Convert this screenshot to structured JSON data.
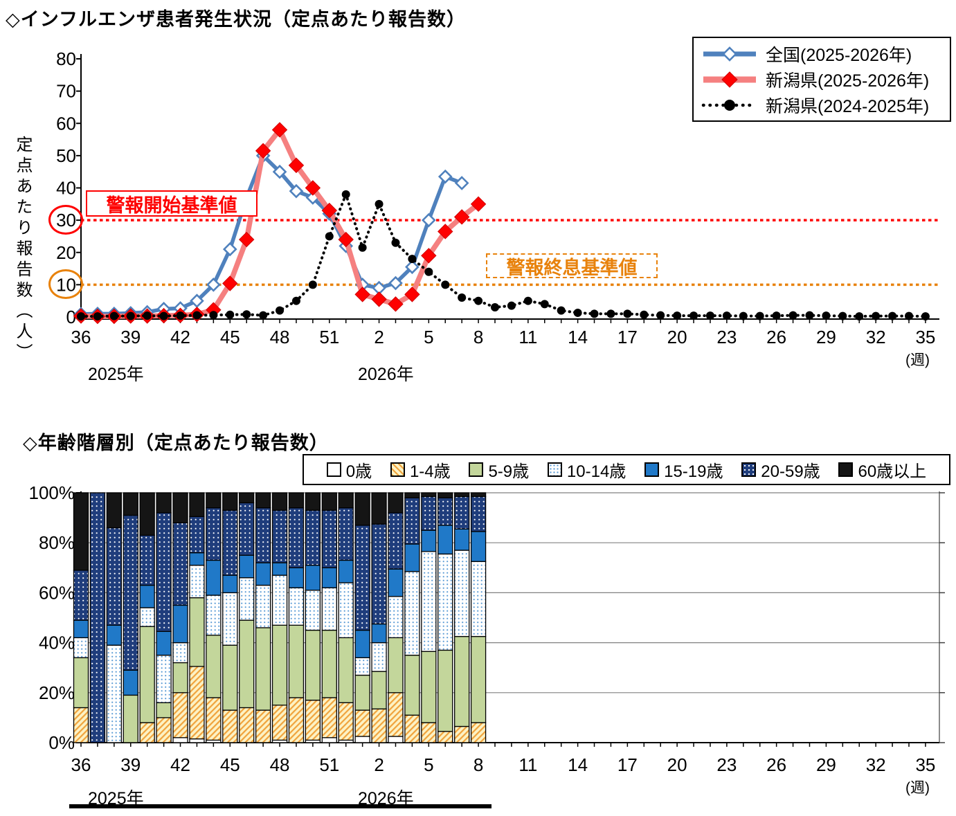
{
  "top_chart": {
    "title": "◇インフルエンザ患者発生状況（定点あたり報告数）",
    "y_axis_title": "定点あたり報告数（人）",
    "unit_label": "(週)",
    "year_label_2025": "2025年",
    "year_label_2026": "2026年",
    "alert_start_label": "警報開始基準値",
    "alert_end_label": "警報終息基準値",
    "legend": [
      {
        "label": "全国(2025-2026年)",
        "marker": "blue-diamond-line"
      },
      {
        "label": "新潟県(2025-2026年)",
        "marker": "red-diamond-line"
      },
      {
        "label": "新潟県(2024-2025年)",
        "marker": "black-dotted-line"
      }
    ],
    "colors": {
      "national_line": "#4f81bd",
      "niigata_current_line": "#f58080",
      "niigata_current_marker": "#fe0000",
      "niigata_previous": "#000000",
      "alert_start": "#fe0000",
      "alert_end": "#e8820c"
    }
  },
  "bottom_chart": {
    "title": "◇年齢階層別（定点あたり報告数）",
    "unit_label": "(週)",
    "year_label_2025": "2025年",
    "year_label_2026": "2026年",
    "legend": [
      "0歳",
      "1-4歳",
      "5-9歳",
      "10-14歳",
      "15-19歳",
      "20-59歳",
      "60歳以上"
    ],
    "segment_colors": [
      "#ffffff",
      "hatch-yellow",
      "#c3d69b",
      "dots-lightblue",
      "#2079c8",
      "dots-navy",
      "#151515"
    ]
  },
  "chart_data": [
    {
      "type": "line",
      "title": "インフルエンザ患者発生状況（定点あたり報告数）",
      "ylabel": "定点あたり報告数（人）",
      "ylim": [
        0,
        80
      ],
      "y_ticks": [
        0,
        10,
        20,
        30,
        40,
        50,
        60,
        70,
        80
      ],
      "circled_y_ticks": [
        30,
        10
      ],
      "x_weeks": [
        "36",
        "37",
        "38",
        "39",
        "40",
        "41",
        "42",
        "43",
        "44",
        "45",
        "46",
        "47",
        "48",
        "49",
        "50",
        "51",
        "52",
        "1",
        "2",
        "3",
        "4",
        "5",
        "6",
        "7",
        "8",
        "9",
        "10",
        "11",
        "12",
        "13",
        "14",
        "15",
        "16",
        "17",
        "18",
        "19",
        "20",
        "21",
        "22",
        "23",
        "24",
        "25",
        "26",
        "27",
        "28",
        "29",
        "30",
        "31",
        "32",
        "33",
        "34",
        "35"
      ],
      "x_label_every": 3,
      "reference_lines": [
        {
          "label": "警報開始基準値",
          "value": 30,
          "color": "#fe0000"
        },
        {
          "label": "警報終息基準値",
          "value": 10,
          "color": "#e8820c"
        }
      ],
      "series": [
        {
          "name": "全国(2025-2026年)",
          "start_index": 0,
          "values": [
            0.9,
            1,
            1,
            1.2,
            1.5,
            2.5,
            2.7,
            5,
            10,
            21,
            37,
            50,
            45,
            39,
            37,
            32,
            22,
            10,
            9,
            10.5,
            15.5,
            30,
            43.5,
            41.5
          ]
        },
        {
          "name": "新潟県(2025-2026年)",
          "start_index": 0,
          "values": [
            0.3,
            0.2,
            0.2,
            0.3,
            0.3,
            0.4,
            0.5,
            0.8,
            2.2,
            10.4,
            24,
            51.5,
            58,
            47,
            40,
            33,
            24,
            7,
            5.5,
            4,
            7,
            19,
            26.5,
            31,
            35
          ]
        },
        {
          "name": "新潟県(2024-2025年)",
          "start_index": 0,
          "values": [
            0.2,
            0.2,
            0.3,
            0.3,
            0.4,
            0.3,
            0.4,
            0.5,
            0.6,
            0.7,
            0.8,
            0.5,
            2,
            5,
            10,
            25,
            38,
            21.5,
            35,
            23,
            18,
            14,
            10,
            6,
            5,
            3,
            3.5,
            5,
            4,
            2,
            1.3,
            1,
            1,
            1,
            0.7,
            0.5,
            0.4,
            0.4,
            0.4,
            0.4,
            0.3,
            0.3,
            0.4,
            0.5,
            0.5,
            0.4,
            0.3,
            0.2,
            0.3,
            0.3,
            0.3,
            0.2
          ]
        }
      ]
    },
    {
      "type": "bar",
      "stacked": true,
      "percent": true,
      "title": "年齢階層別（定点あたり報告数）",
      "y_ticks": [
        0,
        20,
        40,
        60,
        80,
        100
      ],
      "categories": [
        "36",
        "37",
        "38",
        "39",
        "40",
        "41",
        "42",
        "43",
        "44",
        "45",
        "46",
        "47",
        "48",
        "49",
        "50",
        "51",
        "52",
        "1",
        "2",
        "3",
        "4",
        "5",
        "6",
        "7",
        "8"
      ],
      "age_groups": [
        "0歳",
        "1-4歳",
        "5-9歳",
        "10-14歳",
        "15-19歳",
        "20-59歳",
        "60歳以上"
      ],
      "series": [
        {
          "name": "0歳",
          "values": [
            0,
            0,
            0,
            0,
            0,
            0,
            2,
            1.5,
            1,
            0,
            0,
            0,
            1,
            0,
            1,
            2,
            1,
            2.5,
            0,
            2.5,
            0,
            0,
            0,
            0,
            0
          ]
        },
        {
          "name": "1-4歳",
          "values": [
            14,
            0,
            0,
            0,
            8,
            10,
            18,
            29,
            17,
            13,
            14,
            13,
            14,
            18,
            16,
            16,
            15,
            10.5,
            13.5,
            17.5,
            11,
            8,
            4.5,
            6.5,
            8
          ]
        },
        {
          "name": "5-9歳",
          "values": [
            20,
            0,
            0,
            19,
            38.5,
            6,
            12,
            27.5,
            25,
            26,
            35,
            33,
            32,
            29,
            28,
            27,
            26,
            14,
            15,
            22,
            24,
            28.5,
            32.5,
            36,
            34.5
          ]
        },
        {
          "name": "10-14歳",
          "values": [
            8,
            0,
            39,
            0,
            7.5,
            19,
            8,
            13,
            16,
            21,
            17,
            17,
            20,
            15,
            16,
            17,
            22,
            7,
            11.5,
            16.5,
            33.5,
            40,
            38.5,
            34.5,
            30
          ]
        },
        {
          "name": "15-19歳",
          "values": [
            7,
            0,
            8,
            10,
            9,
            9.5,
            15,
            5,
            14,
            7,
            9,
            9,
            5,
            8,
            10,
            8,
            9,
            11,
            7.5,
            11,
            11,
            8.5,
            11.5,
            8.5,
            12
          ]
        },
        {
          "name": "20-59歳",
          "values": [
            20,
            100,
            39,
            62,
            20,
            47.5,
            33,
            14.5,
            21,
            26,
            21,
            22,
            21,
            24,
            22,
            23,
            21,
            42,
            40,
            22.5,
            18.5,
            13.5,
            11,
            13,
            14
          ]
        },
        {
          "name": "60歳以上",
          "values": [
            31,
            0,
            14,
            9,
            17,
            8,
            12,
            9.5,
            6,
            7,
            4,
            6,
            7,
            6,
            7,
            7,
            6,
            13,
            12.5,
            8,
            2,
            1.5,
            2,
            1.5,
            1.5
          ]
        }
      ]
    }
  ]
}
